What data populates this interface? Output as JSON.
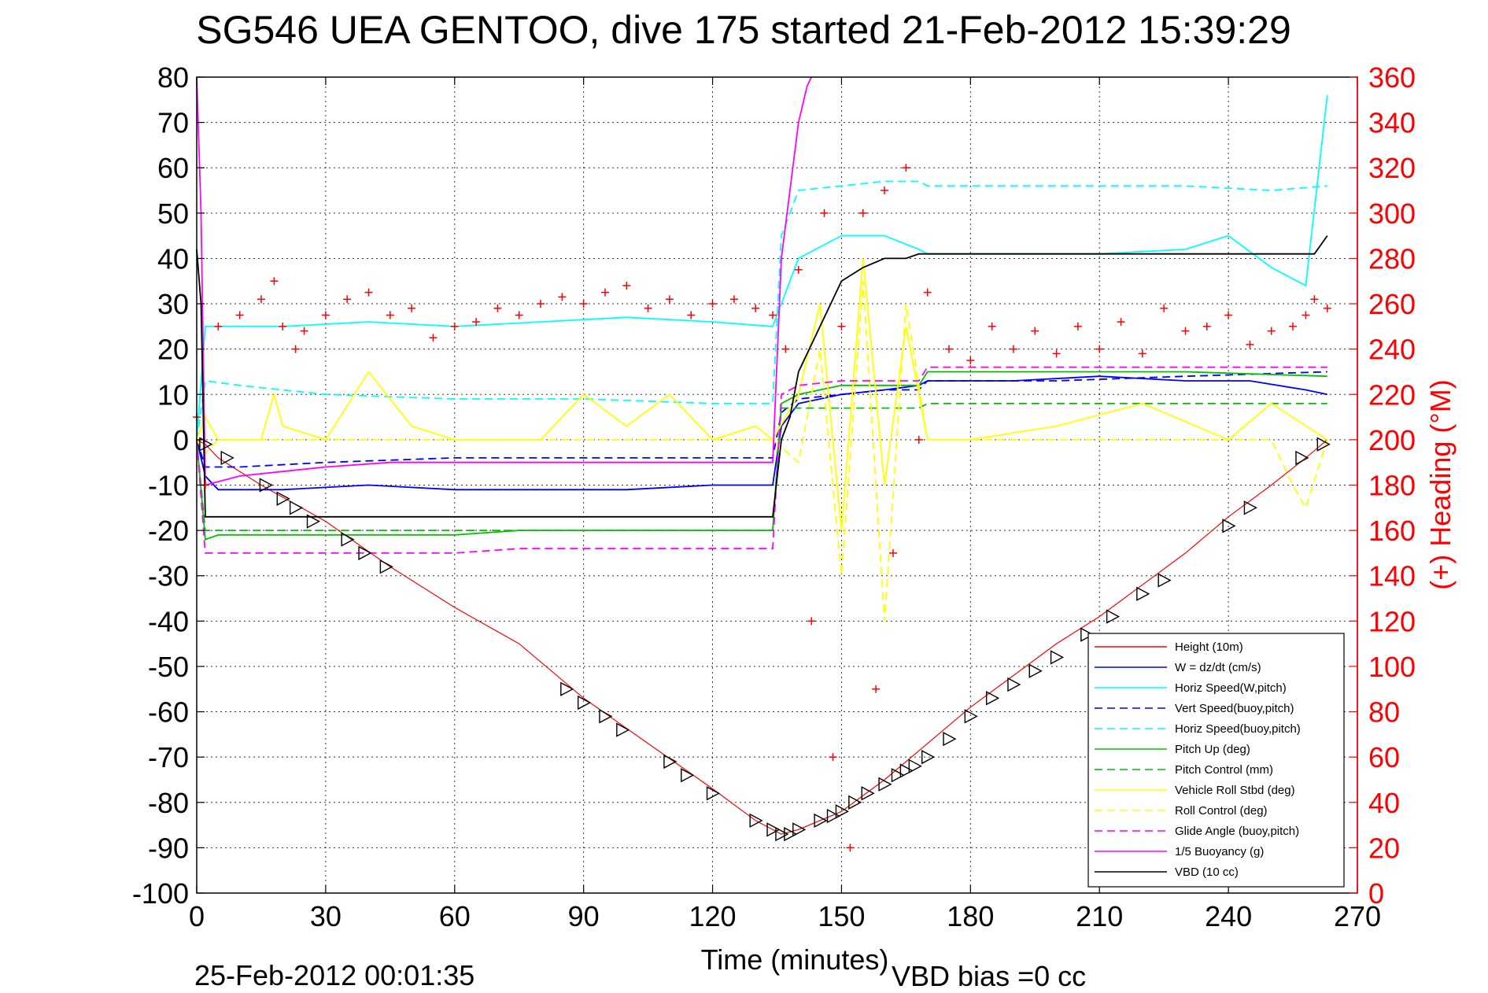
{
  "chart_data": {
    "type": "line",
    "title": "SG546 UEA GENTOO, dive 175 started 21-Feb-2012 15:39:29",
    "xlabel": "Time (minutes)",
    "ylabel": "",
    "ylabel_right": "(+) Heading (°M)",
    "xlim": [
      0,
      270
    ],
    "ylim": [
      -100,
      80
    ],
    "ylim_right": [
      0,
      360
    ],
    "x_ticks": [
      "0",
      "30",
      "60",
      "90",
      "120",
      "150",
      "180",
      "210",
      "240",
      "270"
    ],
    "y_ticks": [
      "80",
      "70",
      "60",
      "50",
      "40",
      "30",
      "20",
      "10",
      "0",
      "-10",
      "-20",
      "-30",
      "-40",
      "-50",
      "-60",
      "-70",
      "-80",
      "-90",
      "-100"
    ],
    "y_ticks_right": [
      "360",
      "340",
      "320",
      "300",
      "280",
      "260",
      "240",
      "220",
      "200",
      "180",
      "160",
      "140",
      "120",
      "100",
      "80",
      "60",
      "40",
      "20",
      "0"
    ],
    "grid": true,
    "legend_position": "bottom-right",
    "series": [
      {
        "name": "Height (10m)",
        "color": "#ff0000",
        "style": "solid",
        "x": [
          0,
          2,
          5,
          15,
          30,
          45,
          60,
          75,
          90,
          105,
          120,
          130,
          136,
          140,
          150,
          160,
          170,
          180,
          190,
          200,
          210,
          220,
          230,
          240,
          250,
          258,
          263
        ],
        "y": [
          0,
          -1,
          -4,
          -10,
          -18,
          -28,
          -37,
          -45,
          -57,
          -67,
          -77,
          -84,
          -87,
          -86,
          -82,
          -75,
          -67,
          -59,
          -52,
          -45,
          -39,
          -32,
          -25,
          -17,
          -10,
          -4,
          0
        ]
      },
      {
        "name": "W = dz/dt (cm/s)",
        "color": "#0000ff",
        "style": "solid",
        "x": [
          0,
          2,
          5,
          20,
          40,
          60,
          80,
          100,
          120,
          134,
          136,
          140,
          150,
          160,
          168,
          170,
          190,
          210,
          230,
          245,
          258,
          263
        ],
        "y": [
          0,
          -8,
          -11,
          -11,
          -10,
          -11,
          -11,
          -11,
          -10,
          -10,
          3,
          8,
          10,
          11,
          12,
          13,
          13,
          14,
          13,
          13,
          11,
          10
        ]
      },
      {
        "name": "Horiz Speed(W,pitch)",
        "color": "#00ffff",
        "style": "solid",
        "x": [
          0,
          2,
          5,
          20,
          40,
          60,
          80,
          100,
          120,
          134,
          136,
          140,
          150,
          160,
          168,
          170,
          190,
          210,
          230,
          240,
          250,
          258,
          263
        ],
        "y": [
          0,
          25,
          25,
          25,
          26,
          25,
          26,
          27,
          26,
          25,
          30,
          40,
          45,
          45,
          42,
          41,
          41,
          41,
          42,
          45,
          38,
          34,
          76
        ]
      },
      {
        "name": "Vert Speed(buoy,pitch)",
        "color": "#0000ff",
        "style": "dashed",
        "x": [
          0,
          2,
          10,
          30,
          60,
          90,
          120,
          134,
          136,
          140,
          150,
          160,
          168,
          170,
          200,
          230,
          263
        ],
        "y": [
          0,
          -6,
          -6,
          -5,
          -4,
          -4,
          -4,
          -4,
          6,
          9,
          10,
          11,
          11,
          13,
          13,
          14,
          15
        ]
      },
      {
        "name": "Horiz Speed(buoy,pitch)",
        "color": "#00ffff",
        "style": "dashed",
        "x": [
          0,
          2,
          10,
          30,
          60,
          90,
          120,
          134,
          136,
          140,
          150,
          160,
          168,
          170,
          200,
          230,
          250,
          263
        ],
        "y": [
          0,
          13,
          12,
          10,
          9,
          9,
          8,
          8,
          45,
          55,
          56,
          57,
          57,
          56,
          56,
          56,
          55,
          56
        ]
      },
      {
        "name": "Pitch Up (deg)",
        "color": "#00c000",
        "style": "solid",
        "x": [
          0,
          2,
          5,
          30,
          60,
          75,
          90,
          120,
          134,
          136,
          140,
          150,
          160,
          168,
          170,
          200,
          230,
          263
        ],
        "y": [
          0,
          -22,
          -21,
          -21,
          -21,
          -20,
          -20,
          -20,
          -20,
          8,
          10,
          12,
          12,
          12,
          15,
          15,
          15,
          14
        ]
      },
      {
        "name": "Pitch Control (mm)",
        "color": "#00c000",
        "style": "dashed",
        "x": [
          0,
          2,
          5,
          30,
          60,
          90,
          120,
          134,
          136,
          150,
          168,
          170,
          200,
          230,
          263
        ],
        "y": [
          0,
          -20,
          -20,
          -20,
          -20,
          -20,
          -20,
          -20,
          7,
          7,
          7,
          8,
          8,
          8,
          8
        ]
      },
      {
        "name": "Vehicle Roll Stbd (deg)",
        "color": "#ffff00",
        "style": "solid",
        "x": [
          0,
          2,
          5,
          15,
          18,
          20,
          30,
          40,
          50,
          60,
          80,
          90,
          100,
          110,
          120,
          130,
          134,
          140,
          145,
          150,
          155,
          160,
          165,
          170,
          180,
          200,
          220,
          240,
          250,
          263
        ],
        "y": [
          0,
          5,
          0,
          0,
          10,
          3,
          0,
          15,
          3,
          0,
          0,
          10,
          3,
          10,
          0,
          3,
          0,
          10,
          30,
          -20,
          40,
          -10,
          25,
          0,
          0,
          3,
          8,
          0,
          8,
          0
        ]
      },
      {
        "name": "Roll Control (deg)",
        "color": "#ffff00",
        "style": "dashed",
        "x": [
          0,
          2,
          5,
          30,
          60,
          90,
          120,
          134,
          140,
          145,
          150,
          155,
          160,
          165,
          170,
          200,
          230,
          250,
          255,
          258,
          263
        ],
        "y": [
          0,
          -3,
          0,
          0,
          0,
          0,
          0,
          0,
          -5,
          20,
          -30,
          35,
          -40,
          30,
          0,
          0,
          0,
          0,
          -10,
          -15,
          0
        ]
      },
      {
        "name": "Glide Angle (buoy,pitch)",
        "color": "#ff00ff",
        "style": "dashed",
        "x": [
          0,
          2,
          5,
          30,
          60,
          75,
          90,
          120,
          134,
          136,
          140,
          150,
          160,
          168,
          170,
          200,
          230,
          263
        ],
        "y": [
          0,
          -25,
          -25,
          -25,
          -25,
          -24,
          -24,
          -24,
          -24,
          10,
          12,
          13,
          13,
          13,
          16,
          16,
          16,
          16
        ]
      },
      {
        "name": "1/5 Buoyancy (g)",
        "color": "#ff00ff",
        "style": "solid",
        "x": [
          0,
          1,
          2,
          10,
          20,
          30,
          45,
          60,
          90,
          120,
          134,
          136,
          140,
          142,
          143
        ],
        "y": [
          80,
          50,
          -10,
          -8,
          -7,
          -6,
          -5,
          -5,
          -5,
          -5,
          -5,
          40,
          70,
          78,
          80
        ]
      },
      {
        "name": "VBD (10 cc)",
        "color": "#000000",
        "style": "solid",
        "x": [
          0,
          1,
          2,
          134,
          136,
          138,
          140,
          145,
          150,
          155,
          160,
          165,
          168,
          200,
          230,
          260,
          263
        ],
        "y": [
          42,
          30,
          -17,
          -17,
          0,
          5,
          15,
          25,
          35,
          38,
          40,
          40,
          41,
          41,
          41,
          41,
          45
        ]
      }
    ],
    "heading_series": {
      "name": "Heading (+ markers, right axis)",
      "color": "#ff0000",
      "marker": "+",
      "x": [
        0,
        2,
        5,
        10,
        15,
        18,
        20,
        23,
        25,
        30,
        35,
        40,
        45,
        50,
        55,
        60,
        65,
        70,
        75,
        80,
        85,
        90,
        95,
        100,
        105,
        110,
        115,
        120,
        125,
        130,
        134,
        137,
        140,
        143,
        146,
        148,
        150,
        152,
        155,
        158,
        160,
        162,
        165,
        168,
        170,
        175,
        180,
        185,
        190,
        195,
        200,
        205,
        210,
        215,
        220,
        225,
        230,
        235,
        240,
        245,
        250,
        255,
        258,
        260,
        263
      ],
      "y": [
        210,
        180,
        250,
        255,
        262,
        270,
        250,
        240,
        248,
        255,
        262,
        265,
        255,
        258,
        245,
        250,
        252,
        258,
        255,
        260,
        263,
        260,
        265,
        268,
        258,
        262,
        255,
        260,
        262,
        258,
        255,
        240,
        275,
        120,
        300,
        60,
        250,
        20,
        300,
        90,
        310,
        150,
        320,
        200,
        265,
        240,
        235,
        250,
        240,
        248,
        238,
        250,
        240,
        252,
        238,
        258,
        248,
        250,
        255,
        242,
        248,
        250,
        255,
        262,
        258
      ]
    },
    "depth_markers": {
      "marker": "triangle-right",
      "color": "#000000",
      "x": [
        2,
        7,
        16,
        20,
        23,
        27,
        35,
        39,
        44,
        86,
        90,
        95,
        99,
        110,
        114,
        120,
        130,
        134,
        136,
        138,
        140,
        145,
        148,
        150,
        153,
        156,
        160,
        163,
        165,
        167,
        170,
        175,
        180,
        185,
        190,
        195,
        200,
        207,
        213,
        220,
        225,
        240,
        245,
        257,
        262
      ],
      "y": [
        -1,
        -4,
        -10,
        -13,
        -15,
        -18,
        -22,
        -25,
        -28,
        -55,
        -58,
        -61,
        -64,
        -71,
        -74,
        -78,
        -84,
        -86,
        -87,
        -87,
        -86,
        -84,
        -83,
        -82,
        -80,
        -78,
        -76,
        -74,
        -73,
        -72,
        -70,
        -66,
        -61,
        -57,
        -54,
        -51,
        -48,
        -43,
        -39,
        -34,
        -31,
        -19,
        -15,
        -4,
        -1
      ]
    }
  },
  "footer": {
    "timestamp": "25-Feb-2012 00:01:35",
    "vbd_bias": "VBD bias =0 cc"
  }
}
